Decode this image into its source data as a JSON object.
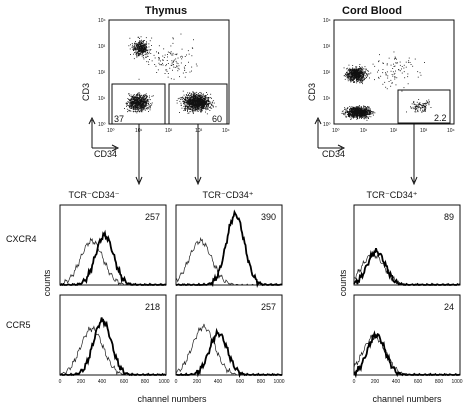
{
  "titles": {
    "thymus": "Thymus",
    "cord": "Cord Blood"
  },
  "dotplot": {
    "y_label": "CD3",
    "x_label": "CD34",
    "ticks": [
      "10⁰",
      "10¹",
      "10²",
      "10³",
      "10⁴"
    ],
    "thymus_gates": [
      "37",
      "60"
    ],
    "cord_gate": "2.2"
  },
  "subsets": {
    "neg": "TCR⁻CD34⁻",
    "pos": "TCR⁻CD34⁺"
  },
  "rows": {
    "cxcr4": "CXCR4",
    "ccr5": "CCR5",
    "counts": "counts"
  },
  "x_ticks": [
    "0",
    "200",
    "400",
    "600",
    "800",
    "1000"
  ],
  "x_label": "channel numbers",
  "panels": [
    {
      "row": "cxcr4",
      "col": "thymus_neg",
      "value": "257",
      "thin_peak": 300,
      "thin_height": 0.55,
      "thick_peak": 420,
      "thick_height": 0.62
    },
    {
      "row": "cxcr4",
      "col": "thymus_pos",
      "value": "390",
      "thin_peak": 230,
      "thin_height": 0.55,
      "thick_peak": 560,
      "thick_height": 0.88
    },
    {
      "row": "cxcr4",
      "col": "cord_pos",
      "value": "89",
      "thin_peak": 180,
      "thin_height": 0.38,
      "thick_peak": 210,
      "thick_height": 0.42
    },
    {
      "row": "ccr5",
      "col": "thymus_neg",
      "value": "218",
      "thin_peak": 300,
      "thin_height": 0.58,
      "thick_peak": 400,
      "thick_height": 0.68
    },
    {
      "row": "ccr5",
      "col": "thymus_pos",
      "value": "257",
      "thin_peak": 260,
      "thin_height": 0.6,
      "thick_peak": 400,
      "thick_height": 0.52
    },
    {
      "row": "ccr5",
      "col": "cord_pos",
      "value": "24",
      "thin_peak": 190,
      "thin_height": 0.48,
      "thick_peak": 210,
      "thick_height": 0.5
    }
  ]
}
